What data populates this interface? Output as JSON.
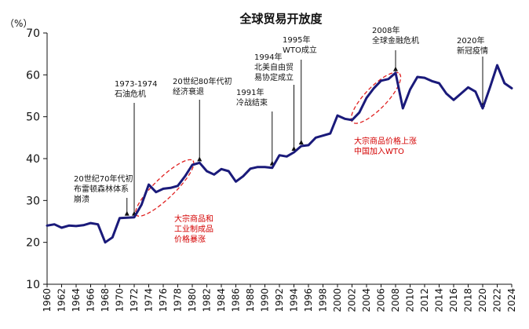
{
  "chart_data": {
    "type": "line",
    "title": "全球贸易开放度",
    "unit_label": "（%）",
    "ylim": [
      10,
      70
    ],
    "yticks": [
      10,
      20,
      30,
      40,
      50,
      60,
      70
    ],
    "xlim": [
      1960,
      2024
    ],
    "xticks": [
      1960,
      1962,
      1964,
      1966,
      1968,
      1970,
      1972,
      1974,
      1976,
      1978,
      1980,
      1982,
      1984,
      1986,
      1988,
      1990,
      1992,
      1994,
      1996,
      1998,
      2000,
      2002,
      2004,
      2006,
      2008,
      2010,
      2012,
      2014,
      2016,
      2018,
      2020,
      2022,
      2024
    ],
    "grid": false,
    "series": [
      {
        "color": "#1a1a7a",
        "x": [
          1960,
          1961,
          1962,
          1963,
          1964,
          1965,
          1966,
          1967,
          1968,
          1969,
          1970,
          1971,
          1972,
          1973,
          1974,
          1975,
          1976,
          1977,
          1978,
          1979,
          1980,
          1981,
          1982,
          1983,
          1984,
          1985,
          1986,
          1987,
          1988,
          1989,
          1990,
          1991,
          1992,
          1993,
          1994,
          1995,
          1996,
          1997,
          1998,
          1999,
          2000,
          2001,
          2002,
          2003,
          2004,
          2005,
          2006,
          2007,
          2008,
          2009,
          2010,
          2011,
          2012,
          2013,
          2014,
          2015,
          2016,
          2017,
          2018,
          2019,
          2020,
          2021,
          2022,
          2023,
          2024
        ],
        "values": [
          24.0,
          24.3,
          23.5,
          24.0,
          23.9,
          24.1,
          24.6,
          24.3,
          20.0,
          21.2,
          25.8,
          25.9,
          26.0,
          29.0,
          33.8,
          32.0,
          32.8,
          33.0,
          33.5,
          35.8,
          38.5,
          39.0,
          37.0,
          36.2,
          37.5,
          37.0,
          34.5,
          35.8,
          37.6,
          38.0,
          38.0,
          37.8,
          40.8,
          40.5,
          41.5,
          43.0,
          43.2,
          45.0,
          45.5,
          46.0,
          50.3,
          49.5,
          49.2,
          51.0,
          54.5,
          56.8,
          58.6,
          59.0,
          60.5,
          52.0,
          56.5,
          59.5,
          59.3,
          58.5,
          58.0,
          55.5,
          54.0,
          55.5,
          57.0,
          56.0,
          52.0,
          57.0,
          62.3,
          58.0,
          56.8
        ]
      }
    ],
    "annotations": [
      {
        "lines": [
          "20世纪70年代初",
          "布雷顿森林体系",
          "崩溃"
        ],
        "x": 1971,
        "target_y": 26,
        "color": "#111111"
      },
      {
        "lines": [
          "1973-1974",
          "石油危机"
        ],
        "x": 1972,
        "target_y": 26,
        "color": "#111111"
      },
      {
        "lines": [
          "20世纪80年代初",
          "经济衰退"
        ],
        "x": 1981,
        "target_y": 39,
        "color": "#111111"
      },
      {
        "lines": [
          "1991年",
          "冷战结束"
        ],
        "x": 1991,
        "target_y": 38,
        "color": "#111111"
      },
      {
        "lines": [
          "1994年",
          "北美自由贸",
          "易协定成立"
        ],
        "x": 1994,
        "target_y": 41.5,
        "color": "#111111"
      },
      {
        "lines": [
          "1995年",
          "WTO成立"
        ],
        "x": 1995,
        "target_y": 43,
        "color": "#111111"
      },
      {
        "lines": [
          "2008年",
          "全球金融危机"
        ],
        "x": 2008,
        "target_y": 60.5,
        "color": "#111111"
      },
      {
        "lines": [
          "2020年",
          "新冠疫情"
        ],
        "x": 2020,
        "target_y": 52,
        "color": "#111111"
      },
      {
        "lines": [
          "大宗商品和",
          "工业制成品",
          "价格暴涨"
        ],
        "color": "#d40000"
      },
      {
        "lines": [
          "大宗商品价格上涨",
          "中国加入WTO"
        ],
        "color": "#d40000"
      }
    ]
  }
}
